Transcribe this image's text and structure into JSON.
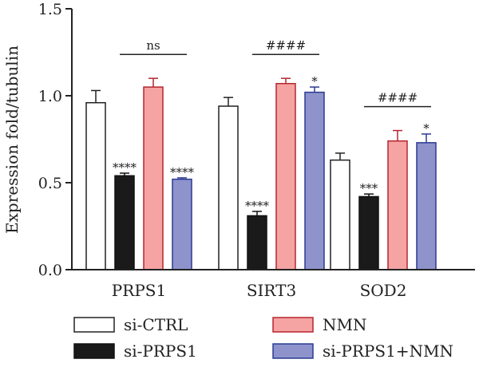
{
  "chart_data": {
    "type": "bar",
    "ylabel": "Expression fold/tubulin",
    "ylim": [
      0.0,
      1.5
    ],
    "yticks": [
      "0.0",
      "0.5",
      "1.0",
      "1.5"
    ],
    "grid": false,
    "legend_position": "bottom",
    "categories": [
      "PRPS1",
      "SIRT3",
      "SOD2"
    ],
    "series": [
      {
        "name": "si-CTRL",
        "color": "#ffffff",
        "edge": "#222222",
        "values": [
          0.96,
          0.94,
          0.63
        ],
        "errors": [
          0.07,
          0.05,
          0.04
        ],
        "marks": [
          "",
          "",
          ""
        ]
      },
      {
        "name": "si-PRPS1",
        "color": "#1a1a1a",
        "edge": "#111111",
        "values": [
          0.54,
          0.31,
          0.42
        ],
        "errors": [
          0.015,
          0.025,
          0.015
        ],
        "marks": [
          "****",
          "****",
          "***"
        ]
      },
      {
        "name": "NMN",
        "color": "#f5a3a3",
        "edge": "#b5262f",
        "values": [
          1.05,
          1.07,
          0.74
        ],
        "errors": [
          0.05,
          0.03,
          0.06
        ],
        "marks": [
          "",
          "",
          ""
        ]
      },
      {
        "name": "si-PRPS1+NMN",
        "color": "#8e93cb",
        "edge": "#2c3a91",
        "values": [
          0.52,
          1.02,
          0.73
        ],
        "errors": [
          0.008,
          0.03,
          0.05
        ],
        "marks": [
          "****",
          "*",
          "*"
        ]
      }
    ],
    "comparisons": [
      {
        "category": "PRPS1",
        "label": "ns"
      },
      {
        "category": "SIRT3",
        "label": "####"
      },
      {
        "category": "SOD2",
        "label": "####"
      }
    ]
  }
}
